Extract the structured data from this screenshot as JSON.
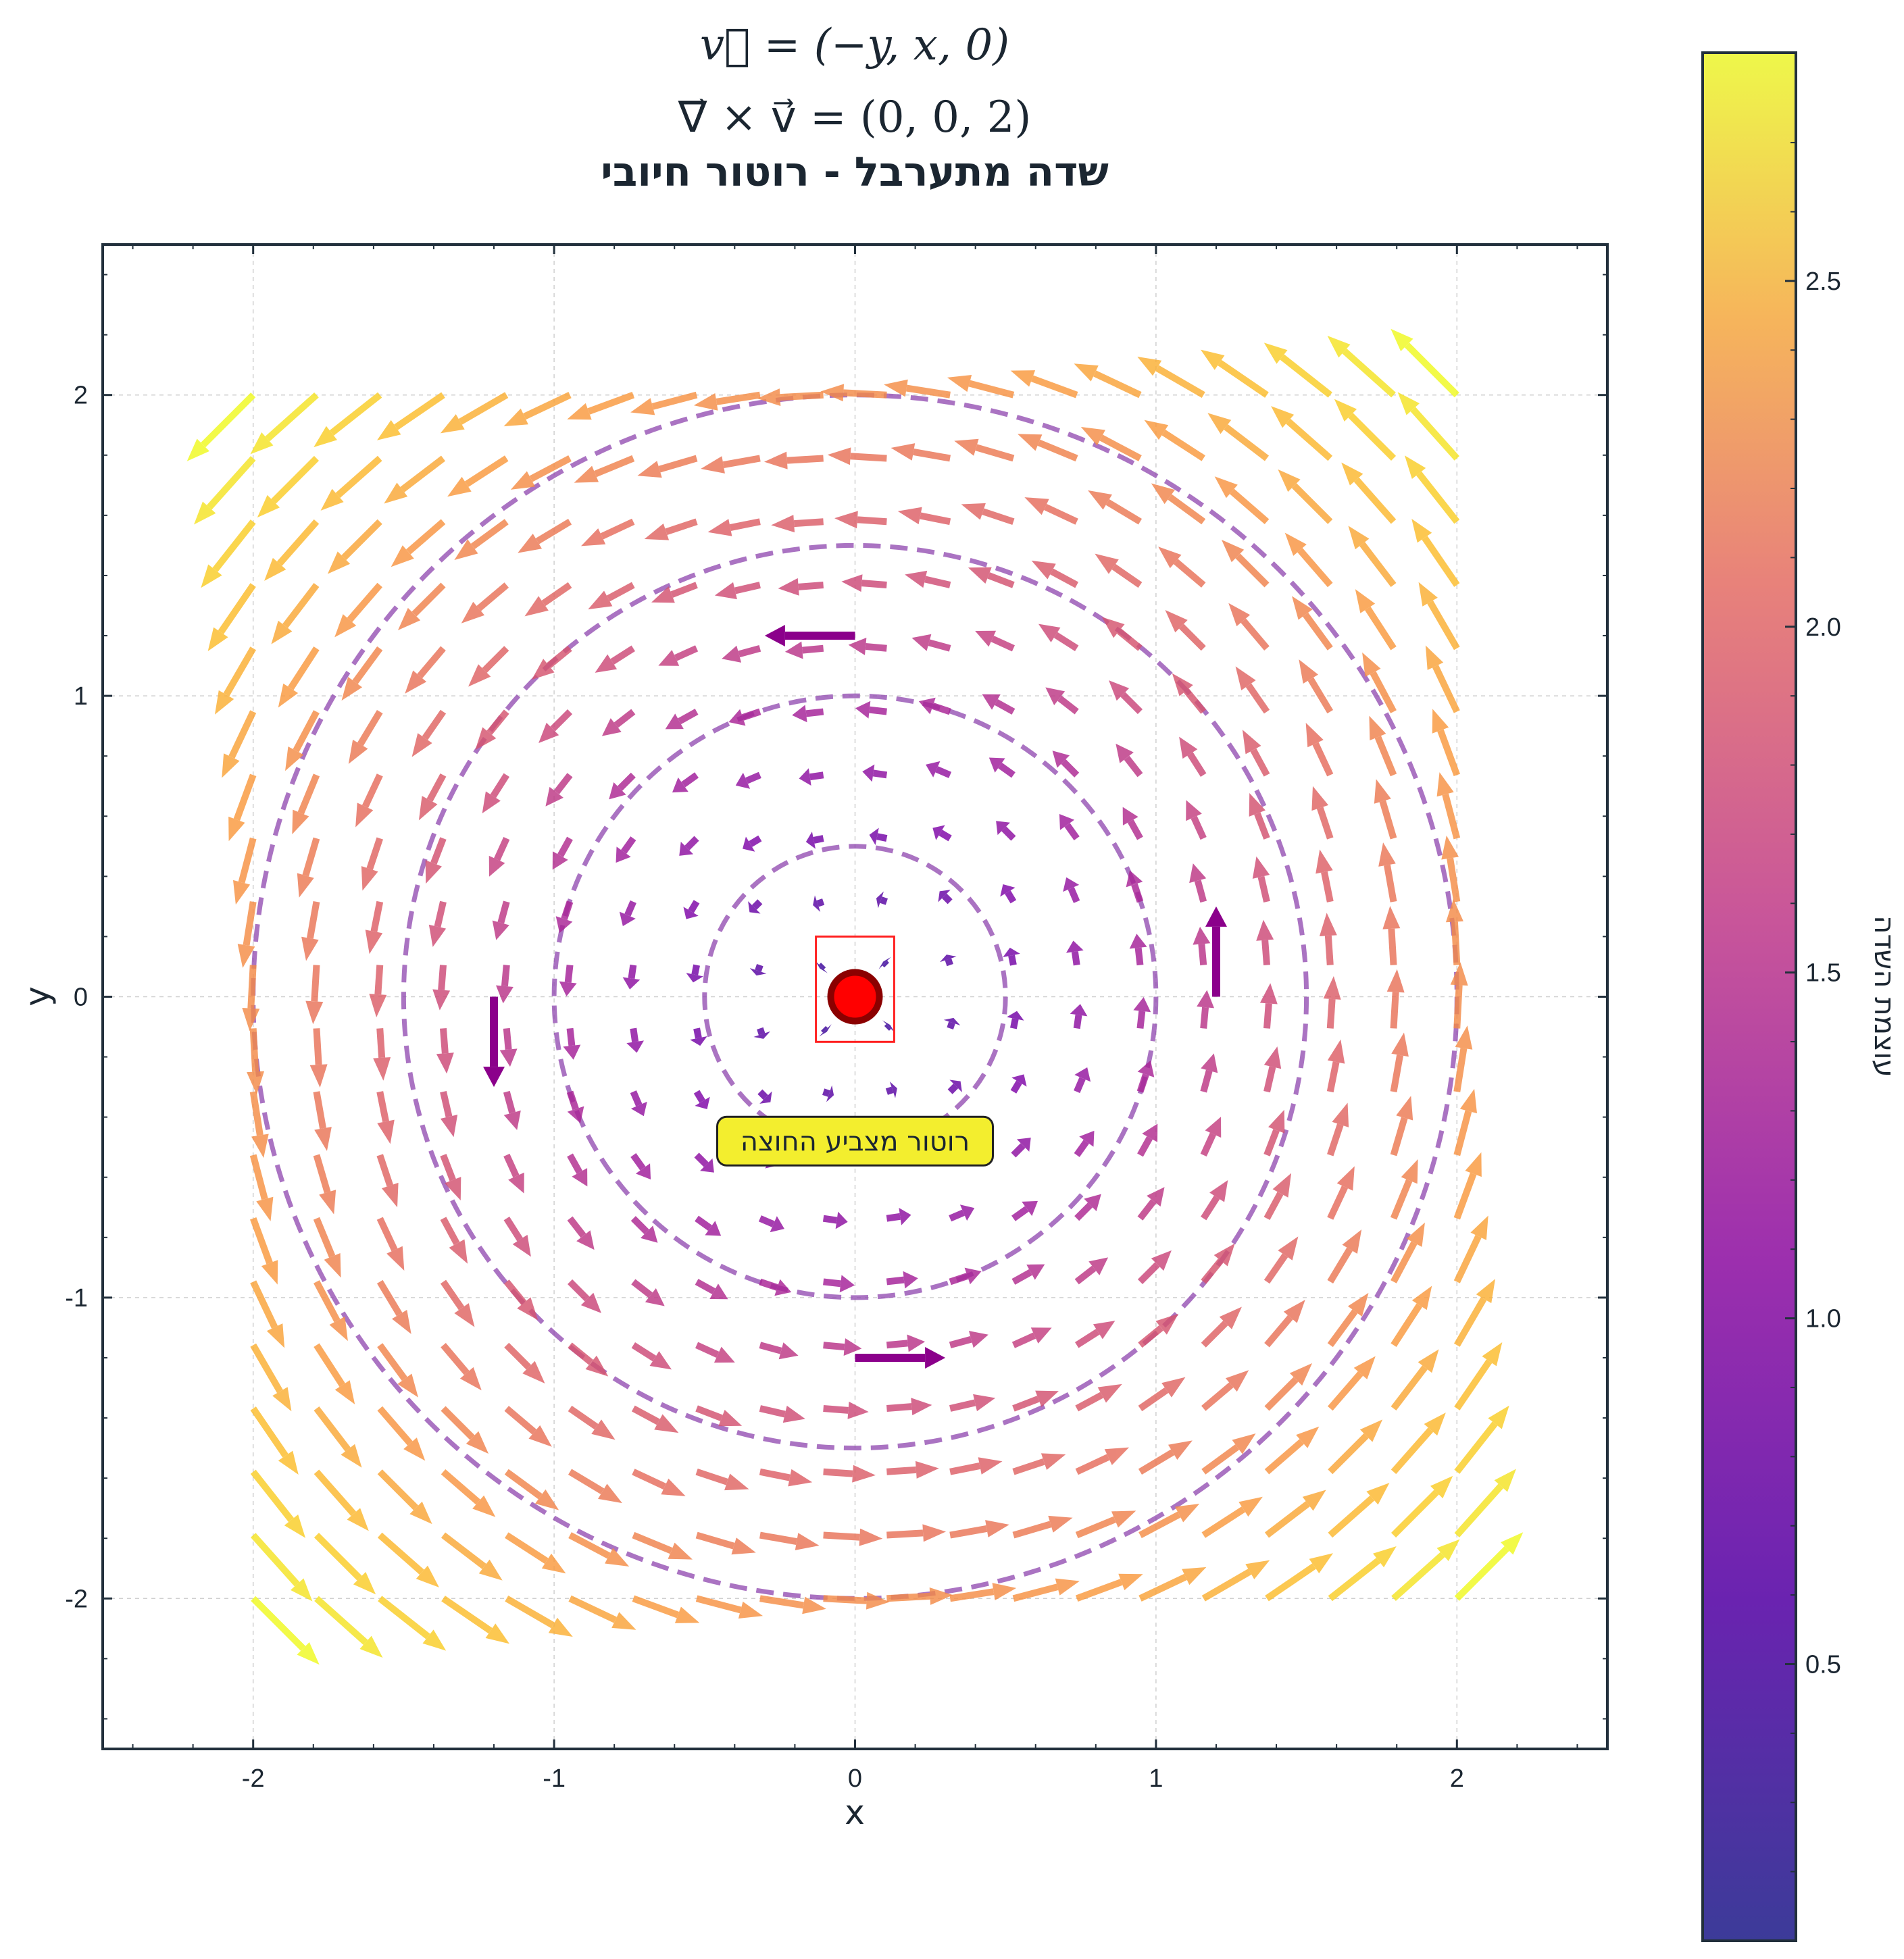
{
  "chart_data": {
    "type": "quiver",
    "title_lines": [
      "v⃗ = (−y, x, 0)",
      "∇⃗ × v⃗ = (0, 0, 2)",
      "שדה מתערבל - רוטור חיובי"
    ],
    "xlabel": "x",
    "ylabel": "y",
    "xlim": [
      -2.5,
      2.5
    ],
    "ylim": [
      -2.5,
      2.5
    ],
    "xticks": [
      -2,
      -1,
      0,
      1,
      2
    ],
    "yticks": [
      -2,
      -1,
      0,
      1,
      2
    ],
    "xtick_labels": [
      "-2",
      "-1",
      "0",
      "1",
      "2"
    ],
    "ytick_labels": [
      "-2",
      "-1",
      "0",
      "1",
      "2"
    ],
    "grid": true,
    "field": {
      "vx": "-y",
      "vy": "x",
      "grid_range": [
        -2,
        2
      ],
      "grid_n": 20,
      "magnitude": "sqrt(x^2 + y^2)"
    },
    "circles": {
      "radii": [
        0.5,
        1.0,
        1.5,
        2.0
      ],
      "style": "dashed",
      "color": "#8e44ad"
    },
    "direction_arrows": [
      {
        "x": 1.2,
        "y": 0.0,
        "dx": 0.0,
        "dy": 0.3
      },
      {
        "x": 0.0,
        "y": 1.2,
        "dx": -0.3,
        "dy": 0.0
      },
      {
        "x": -1.2,
        "y": 0.0,
        "dx": 0.0,
        "dy": -0.3
      },
      {
        "x": 0.0,
        "y": -1.2,
        "dx": 0.3,
        "dy": 0.0
      }
    ],
    "center_marker": {
      "x": 0,
      "y": 0,
      "color": "#ff0000",
      "edge": "#8b0000"
    },
    "center_box": {
      "x0": -0.13,
      "x1": 0.13,
      "y0": -0.15,
      "y1": 0.2
    },
    "annotation": {
      "text": "רוטור מצביע החוצה",
      "x": 0.0,
      "y": -0.48
    },
    "colorbar": {
      "label": "עוצמת השדה",
      "colormap": "plasma",
      "range": [
        0.1,
        2.83
      ],
      "ticks": [
        0.5,
        1.0,
        1.5,
        2.0,
        2.5
      ],
      "tick_labels": [
        "0.5",
        "1.0",
        "1.5",
        "2.0",
        "2.5"
      ]
    }
  }
}
